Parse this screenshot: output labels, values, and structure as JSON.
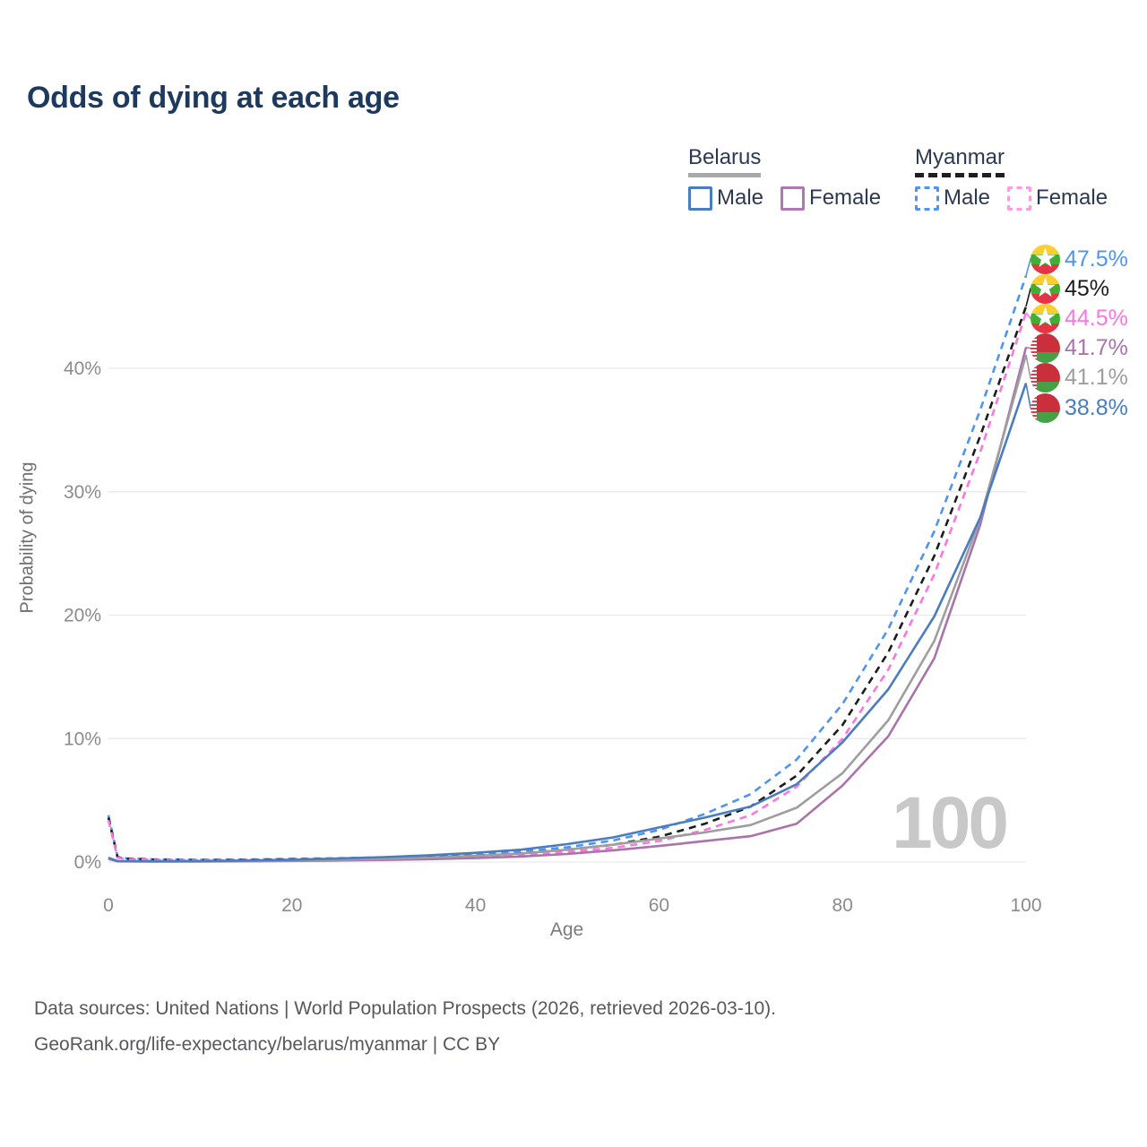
{
  "title": "Odds of dying at each age",
  "legend": {
    "groups": [
      {
        "country": "Belarus",
        "line_style": "solid",
        "underline_color": "#a8a8a8",
        "items": [
          {
            "label": "Male",
            "color": "#4a7cc2",
            "dashed": false
          },
          {
            "label": "Female",
            "color": "#b177b0",
            "dashed": false
          }
        ]
      },
      {
        "country": "Myanmar",
        "line_style": "dashed",
        "underline_color": "#1f1f1f",
        "items": [
          {
            "label": "Male",
            "color": "#4f94f2",
            "dashed": true
          },
          {
            "label": "Female",
            "color": "#ff9ae4",
            "dashed": true
          }
        ]
      }
    ]
  },
  "chart_data": {
    "type": "line",
    "title": "Odds of dying at each age",
    "xlabel": "Age",
    "ylabel": "Probability of dying",
    "x_ticks": [
      0,
      20,
      40,
      60,
      80,
      100
    ],
    "y_ticks": [
      0,
      10,
      20,
      30,
      40
    ],
    "y_tick_suffix": "%",
    "xlim": [
      0,
      100
    ],
    "ylim": [
      0,
      49
    ],
    "grid": "horizontal",
    "legend_position": "top-right",
    "watermark": "100",
    "x": [
      0,
      1,
      2,
      5,
      10,
      15,
      20,
      25,
      30,
      35,
      40,
      45,
      50,
      55,
      60,
      65,
      70,
      75,
      80,
      85,
      90,
      95,
      100
    ],
    "series": [
      {
        "name": "Myanmar Male",
        "country": "Myanmar",
        "flag": "myanmar",
        "color": "#4f94f2",
        "dashed": true,
        "end_label": "47.5%",
        "end_value": 47.5,
        "values": [
          3.8,
          0.42,
          0.3,
          0.22,
          0.18,
          0.2,
          0.26,
          0.31,
          0.38,
          0.48,
          0.62,
          0.85,
          1.2,
          1.75,
          2.6,
          3.9,
          5.5,
          8.3,
          12.8,
          18.9,
          26.8,
          36.6,
          47.5
        ]
      },
      {
        "name": "Myanmar",
        "country": "Myanmar",
        "flag": "myanmar",
        "color": "#1c1c1c",
        "dashed": true,
        "end_label": "45%",
        "end_value": 45,
        "values": [
          3.6,
          0.38,
          0.27,
          0.19,
          0.15,
          0.17,
          0.22,
          0.26,
          0.31,
          0.4,
          0.51,
          0.7,
          1.0,
          1.4,
          2.05,
          3.1,
          4.5,
          7.0,
          11.1,
          17.0,
          24.8,
          34.5,
          45
        ]
      },
      {
        "name": "Myanmar Female",
        "country": "Myanmar",
        "flag": "myanmar",
        "color": "#fb76dd",
        "dashed": true,
        "end_label": "44.5%",
        "end_value": 44.5,
        "values": [
          3.4,
          0.35,
          0.24,
          0.17,
          0.13,
          0.14,
          0.18,
          0.22,
          0.26,
          0.33,
          0.43,
          0.58,
          0.83,
          1.15,
          1.7,
          2.6,
          3.8,
          6.1,
          10.0,
          15.6,
          23.3,
          33.2,
          44.5
        ]
      },
      {
        "name": "Belarus Female",
        "country": "Belarus",
        "flag": "belarus",
        "color": "#aa73ac",
        "dashed": false,
        "end_label": "41.7%",
        "end_value": 41.7,
        "values": [
          0.25,
          0.06,
          0.05,
          0.04,
          0.045,
          0.06,
          0.09,
          0.12,
          0.17,
          0.23,
          0.32,
          0.45,
          0.65,
          0.95,
          1.3,
          1.7,
          2.1,
          3.1,
          6.2,
          10.2,
          16.5,
          27.3,
          41.7
        ]
      },
      {
        "name": "Belarus",
        "country": "Belarus",
        "flag": "belarus",
        "color": "#9e9e9e",
        "dashed": false,
        "end_label": "41.1%",
        "end_value": 41.1,
        "values": [
          0.3,
          0.07,
          0.06,
          0.05,
          0.055,
          0.08,
          0.13,
          0.18,
          0.26,
          0.36,
          0.5,
          0.7,
          1.0,
          1.4,
          1.9,
          2.4,
          3.0,
          4.4,
          7.2,
          11.5,
          17.9,
          27.8,
          41.1
        ]
      },
      {
        "name": "Belarus Male",
        "country": "Belarus",
        "flag": "belarus",
        "color": "#4a7cc2",
        "dashed": false,
        "end_label": "38.8%",
        "end_value": 38.8,
        "values": [
          0.35,
          0.08,
          0.07,
          0.06,
          0.07,
          0.12,
          0.19,
          0.28,
          0.4,
          0.55,
          0.75,
          1.0,
          1.45,
          2.0,
          2.8,
          3.6,
          4.5,
          6.3,
          9.7,
          14.0,
          19.9,
          27.9,
          38.8
        ]
      }
    ]
  },
  "footer": {
    "line1": "Data sources: United Nations | World Population Prospects (2026, retrieved 2026-03-10).",
    "line2": "GeoRank.org/life-expectancy/belarus/myanmar | CC BY"
  }
}
